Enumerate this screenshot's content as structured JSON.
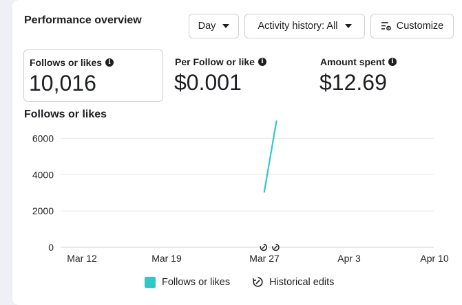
{
  "header": {
    "title": "Performance overview",
    "day_label": "Day",
    "activity_label": "Activity history: All",
    "customize_label": "Customize"
  },
  "metrics": [
    {
      "label": "Follows or likes",
      "value": "10,016"
    },
    {
      "label": "Per Follow or like",
      "value": "$0.001"
    },
    {
      "label": "Amount spent",
      "value": "$12.69"
    }
  ],
  "chart_title": "Follows or likes",
  "legend": {
    "series_label": "Follows or likes",
    "edits_label": "Historical edits"
  },
  "colors": {
    "series": "#2ec9c6",
    "grid": "#e4e6eb",
    "axis_text": "#1c1e21"
  },
  "chart_data": {
    "type": "line",
    "x_ticks": [
      "Mar 12",
      "Mar 19",
      "Mar 27",
      "Apr 3",
      "Apr 10"
    ],
    "y_ticks": [
      0,
      2000,
      4000,
      6000
    ],
    "ylim": [
      0,
      7000
    ],
    "series": [
      {
        "name": "Follows or likes",
        "x": [
          "Mar 27",
          "Mar 28"
        ],
        "y": [
          3050,
          6950
        ]
      }
    ],
    "annotations": [
      {
        "type": "historical-edit",
        "x": "Mar 27"
      },
      {
        "type": "historical-edit",
        "x": "Mar 28"
      }
    ]
  }
}
